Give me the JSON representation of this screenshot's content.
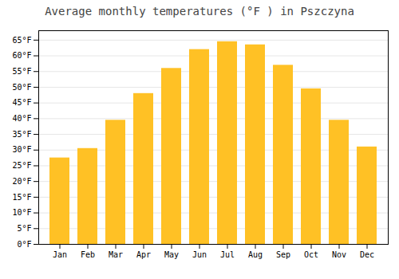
{
  "chart_data": {
    "type": "bar",
    "title": "Average monthly temperatures (°F ) in Pszczyna",
    "categories": [
      "Jan",
      "Feb",
      "Mar",
      "Apr",
      "May",
      "Jun",
      "Jul",
      "Aug",
      "Sep",
      "Oct",
      "Nov",
      "Dec"
    ],
    "values": [
      27.5,
      30.5,
      39.5,
      48.0,
      56.0,
      62.0,
      64.5,
      63.5,
      57.0,
      49.5,
      39.5,
      31.0
    ],
    "color": "#FFC125",
    "ylim": [
      0,
      68
    ],
    "yticks": [
      {
        "value": 0,
        "label": "0°F"
      },
      {
        "value": 5,
        "label": "5°F"
      },
      {
        "value": 10,
        "label": "10°F"
      },
      {
        "value": 15,
        "label": "15°F"
      },
      {
        "value": 20,
        "label": "20°F"
      },
      {
        "value": 25,
        "label": "25°F"
      },
      {
        "value": 30,
        "label": "30°F"
      },
      {
        "value": 35,
        "label": "35°F"
      },
      {
        "value": 40,
        "label": "40°F"
      },
      {
        "value": 45,
        "label": "45°F"
      },
      {
        "value": 50,
        "label": "50°F"
      },
      {
        "value": 55,
        "label": "55°F"
      },
      {
        "value": 60,
        "label": "60°F"
      },
      {
        "value": 65,
        "label": "65°F"
      }
    ],
    "grid": true
  }
}
